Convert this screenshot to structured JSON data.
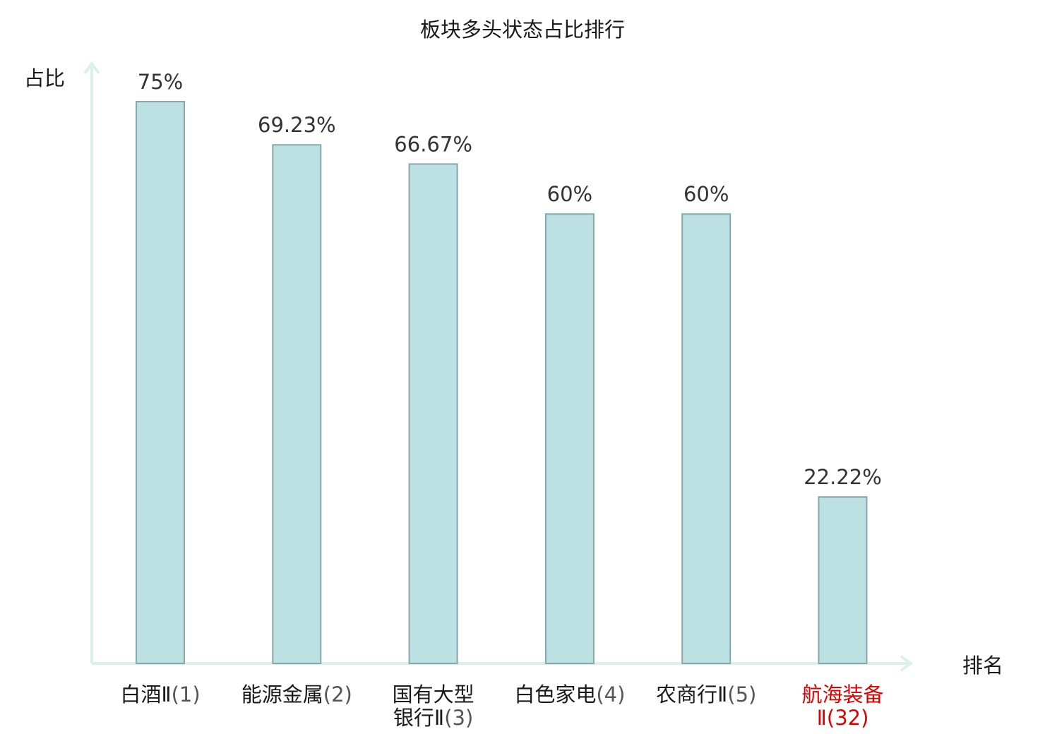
{
  "chart_data": {
    "type": "bar",
    "title": "板块多头状态占比排行",
    "ylabel": "占比",
    "xlabel": "排名",
    "ylim": [
      0,
      80
    ],
    "categories": [
      {
        "lines": [
          {
            "name": "白酒Ⅱ",
            "rank": "(1)"
          }
        ],
        "highlight": false
      },
      {
        "lines": [
          {
            "name": "能源金属",
            "rank": "(2)"
          }
        ],
        "highlight": false
      },
      {
        "lines": [
          {
            "name": "国有大型",
            "rank": ""
          },
          {
            "name": "银行Ⅱ",
            "rank": "(3)"
          }
        ],
        "highlight": false
      },
      {
        "lines": [
          {
            "name": "白色家电",
            "rank": "(4)"
          }
        ],
        "highlight": false
      },
      {
        "lines": [
          {
            "name": "农商行Ⅱ",
            "rank": "(5)"
          }
        ],
        "highlight": false
      },
      {
        "lines": [
          {
            "name": "航海装备",
            "rank": ""
          },
          {
            "name": "Ⅱ",
            "rank": "(32)"
          }
        ],
        "highlight": true
      }
    ],
    "values": [
      75,
      69.23,
      66.67,
      60,
      60,
      22.22
    ],
    "value_labels": [
      "75%",
      "69.23%",
      "66.67%",
      "60%",
      "60%",
      "22.22%"
    ],
    "grid": false,
    "colors": {
      "bar_fill": "#bde0e2",
      "bar_stroke": "#86a8ab",
      "axis": "#dcefec",
      "highlight_text": "#e00000"
    }
  }
}
